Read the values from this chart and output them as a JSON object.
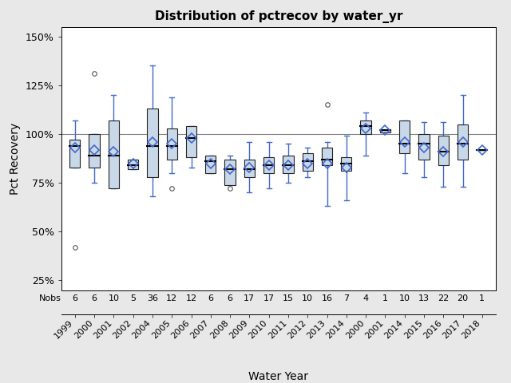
{
  "title": "Distribution of pctrecov by water_yr",
  "xlabel": "Water Year",
  "ylabel": "Pct Recovery",
  "years": [
    "1999",
    "2000",
    "2001",
    "2002",
    "2004",
    "2005",
    "2006",
    "2007",
    "2008",
    "2009",
    "2010",
    "2011",
    "2012",
    "2013",
    "2014",
    "2000",
    "2001",
    "2014",
    "2015",
    "2016",
    "2017",
    "2018"
  ],
  "nobs": [
    6,
    6,
    10,
    5,
    36,
    12,
    12,
    6,
    6,
    17,
    17,
    15,
    10,
    16,
    7,
    4,
    1,
    10,
    13,
    22,
    20,
    1
  ],
  "boxes": [
    {
      "q1": 83,
      "median": 94,
      "q3": 97,
      "whislo": 83,
      "whishi": 107,
      "mean": 93,
      "fliers_high": [],
      "fliers_low": [
        42
      ]
    },
    {
      "q1": 83,
      "median": 89,
      "q3": 100,
      "whislo": 75,
      "whishi": 100,
      "mean": 92,
      "fliers_high": [
        131
      ],
      "fliers_low": []
    },
    {
      "q1": 72,
      "median": 89,
      "q3": 107,
      "whislo": 72,
      "whishi": 120,
      "mean": 91,
      "fliers_high": [],
      "fliers_low": []
    },
    {
      "q1": 82,
      "median": 84,
      "q3": 87,
      "whislo": 82,
      "whishi": 87,
      "mean": 85,
      "fliers_high": [],
      "fliers_low": []
    },
    {
      "q1": 78,
      "median": 94,
      "q3": 113,
      "whislo": 68,
      "whishi": 135,
      "mean": 96,
      "fliers_high": [],
      "fliers_low": []
    },
    {
      "q1": 87,
      "median": 94,
      "q3": 103,
      "whislo": 80,
      "whishi": 119,
      "mean": 95,
      "fliers_high": [],
      "fliers_low": [
        72
      ]
    },
    {
      "q1": 88,
      "median": 98,
      "q3": 104,
      "whislo": 83,
      "whishi": 104,
      "mean": 98,
      "fliers_high": [],
      "fliers_low": []
    },
    {
      "q1": 80,
      "median": 86,
      "q3": 89,
      "whislo": 80,
      "whishi": 89,
      "mean": 85,
      "fliers_high": [],
      "fliers_low": []
    },
    {
      "q1": 74,
      "median": 82,
      "q3": 87,
      "whislo": 74,
      "whishi": 89,
      "mean": 82,
      "fliers_high": [],
      "fliers_low": [
        72
      ]
    },
    {
      "q1": 78,
      "median": 82,
      "q3": 87,
      "whislo": 70,
      "whishi": 96,
      "mean": 83,
      "fliers_high": [],
      "fliers_low": []
    },
    {
      "q1": 80,
      "median": 84,
      "q3": 88,
      "whislo": 72,
      "whishi": 96,
      "mean": 84,
      "fliers_high": [],
      "fliers_low": []
    },
    {
      "q1": 80,
      "median": 84,
      "q3": 89,
      "whislo": 75,
      "whishi": 95,
      "mean": 84,
      "fliers_high": [],
      "fliers_low": []
    },
    {
      "q1": 81,
      "median": 86,
      "q3": 90,
      "whislo": 78,
      "whishi": 93,
      "mean": 85,
      "fliers_high": [],
      "fliers_low": []
    },
    {
      "q1": 84,
      "median": 87,
      "q3": 93,
      "whislo": 63,
      "whishi": 96,
      "mean": 85,
      "fliers_high": [
        115
      ],
      "fliers_low": []
    },
    {
      "q1": 81,
      "median": 85,
      "q3": 88,
      "whislo": 66,
      "whishi": 99,
      "mean": 83,
      "fliers_high": [],
      "fliers_low": []
    },
    {
      "q1": 100,
      "median": 104,
      "q3": 107,
      "whislo": 89,
      "whishi": 111,
      "mean": 103,
      "fliers_high": [],
      "fliers_low": []
    },
    {
      "q1": 101,
      "median": 102,
      "q3": 102,
      "whislo": 101,
      "whishi": 102,
      "mean": 102,
      "fliers_high": [],
      "fliers_low": []
    },
    {
      "q1": 90,
      "median": 95,
      "q3": 107,
      "whislo": 80,
      "whishi": 107,
      "mean": 96,
      "fliers_high": [],
      "fliers_low": []
    },
    {
      "q1": 87,
      "median": 95,
      "q3": 100,
      "whislo": 78,
      "whishi": 106,
      "mean": 93,
      "fliers_high": [],
      "fliers_low": []
    },
    {
      "q1": 84,
      "median": 91,
      "q3": 99,
      "whislo": 73,
      "whishi": 106,
      "mean": 91,
      "fliers_high": [],
      "fliers_low": []
    },
    {
      "q1": 87,
      "median": 95,
      "q3": 105,
      "whislo": 73,
      "whishi": 120,
      "mean": 96,
      "fliers_high": [],
      "fliers_low": []
    },
    {
      "q1": 92,
      "median": 92,
      "q3": 92,
      "whislo": 92,
      "whishi": 92,
      "mean": 92,
      "fliers_high": [],
      "fliers_low": []
    }
  ],
  "box_facecolor": "#c8d8e8",
  "box_edgecolor": "#222222",
  "whisker_color": "#4169cd",
  "median_color": "#000000",
  "mean_marker_color": "#4169cd",
  "flier_color": "#555555",
  "ref_line_y": 100,
  "ylim_main": [
    20,
    155
  ],
  "yticks": [
    25,
    50,
    75,
    100,
    125,
    150
  ],
  "ytick_labels": [
    "25%",
    "50%",
    "75%",
    "100%",
    "125%",
    "150%"
  ],
  "background_color": "#e8e8e8",
  "plot_background": "#ffffff",
  "box_width": 0.55
}
